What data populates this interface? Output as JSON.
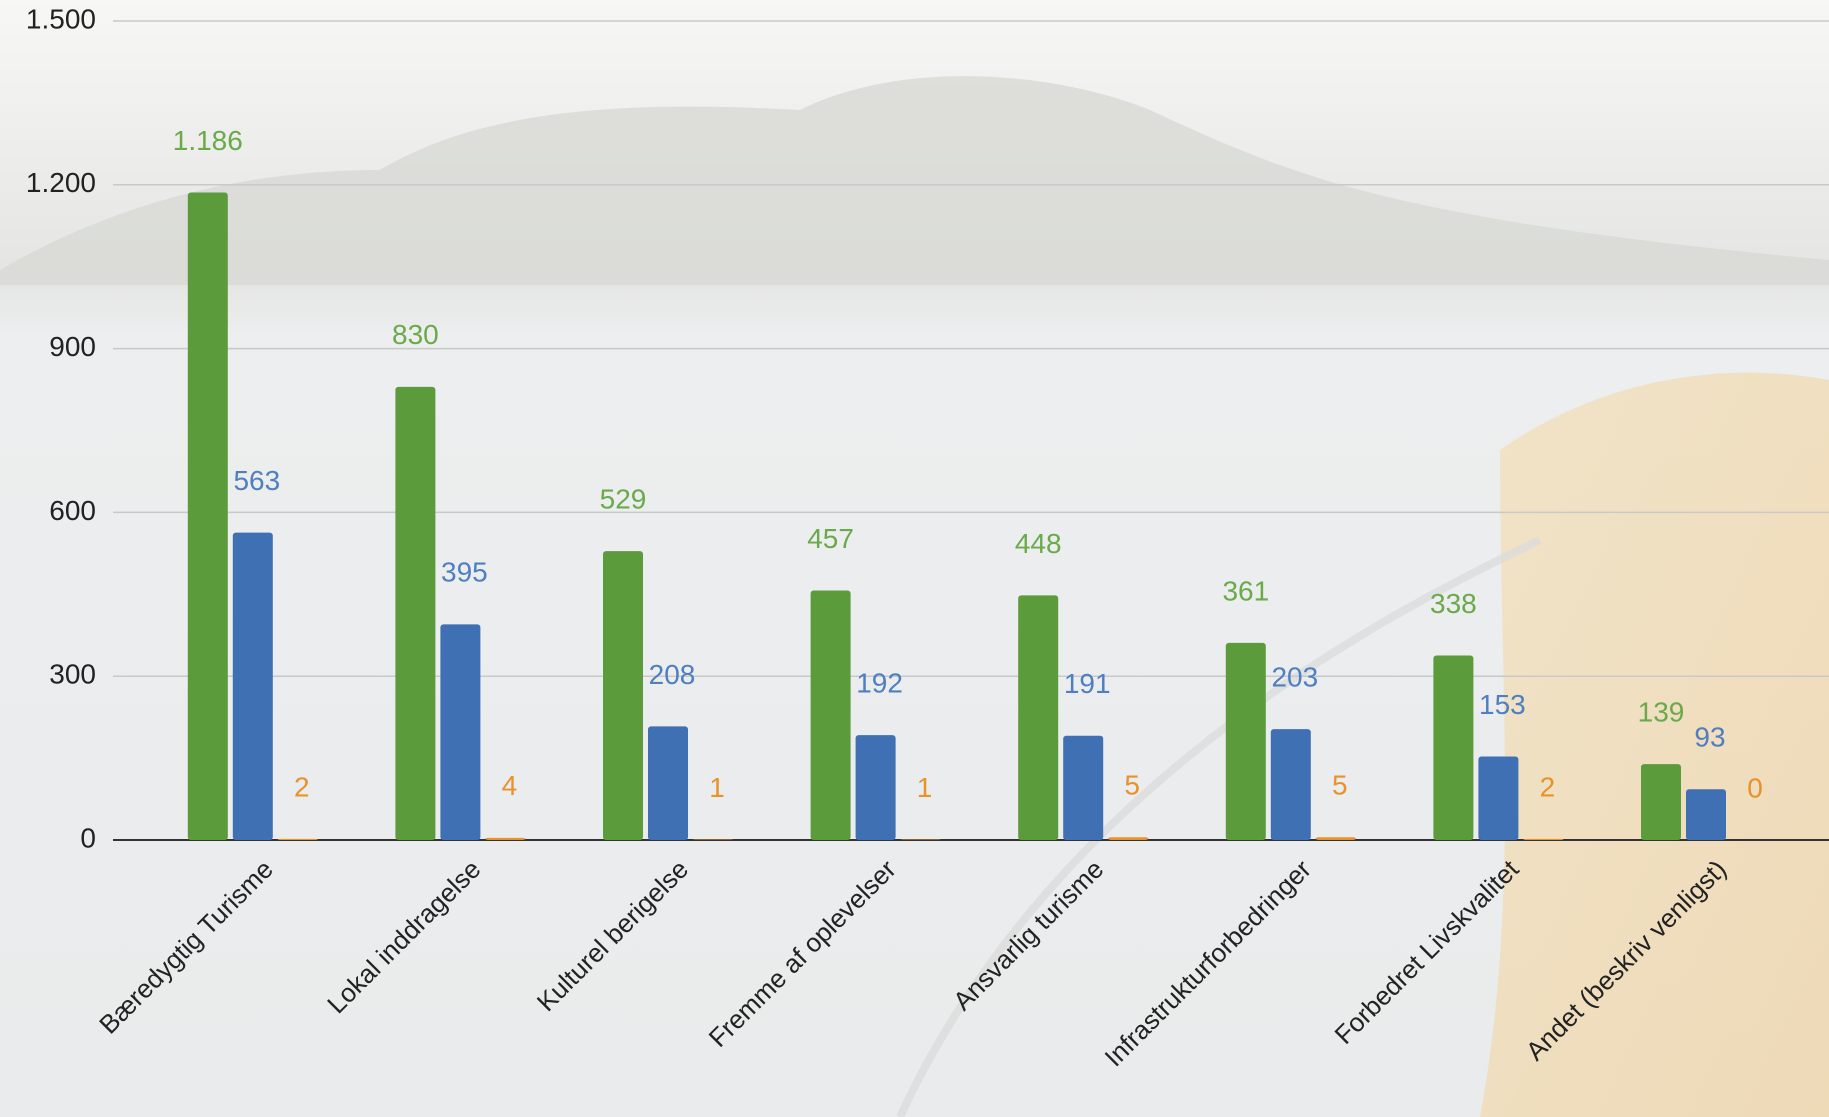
{
  "chart_data": {
    "type": "bar",
    "categories": [
      "Bæredygtig Turisme",
      "Lokal inddragelse",
      "Kulturel berigelse",
      "Fremme af oplevelser",
      "Ansvarlig turisme",
      "Infrastrukturforbedringer",
      "Forbedret Livskvalitet",
      "Andet (beskriv venligst)"
    ],
    "series": [
      {
        "color": "#5b9b3c",
        "label_color": "#6aaa4a",
        "values": [
          1186,
          830,
          529,
          457,
          448,
          361,
          338,
          139
        ],
        "value_labels": [
          "1.186",
          "830",
          "529",
          "457",
          "448",
          "361",
          "338",
          "139"
        ]
      },
      {
        "color": "#3f70b3",
        "label_color": "#4f7fc0",
        "values": [
          563,
          395,
          208,
          192,
          191,
          203,
          153,
          93
        ]
      },
      {
        "color": "#e8922c",
        "label_color": "#e8922c",
        "values": [
          2,
          4,
          1,
          1,
          5,
          5,
          2,
          0
        ]
      }
    ],
    "ylim": [
      0,
      1500
    ],
    "yticks": [
      0,
      300,
      600,
      900,
      {
        "value": 1200,
        "label": "1.200"
      },
      {
        "value": 1500,
        "label": "1.500"
      }
    ],
    "grid": true
  }
}
